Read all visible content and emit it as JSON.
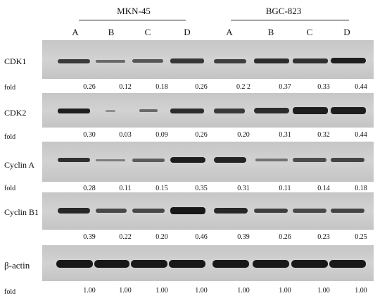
{
  "groups": [
    {
      "name": "MKN-45",
      "lanes": [
        "A",
        "B",
        "C",
        "D"
      ]
    },
    {
      "name": "BGC-823",
      "lanes": [
        "A",
        "B",
        "C",
        "D"
      ]
    }
  ],
  "fold_label": "fold",
  "blots": [
    {
      "protein": "CDK1",
      "folds": [
        "0.26",
        "0.12",
        "0.18",
        "0.26",
        "0.2 2",
        "0.37",
        "0.33",
        "0.44"
      ]
    },
    {
      "protein": "CDK2",
      "folds": [
        "0.30",
        "0.03",
        "0.09",
        "0.26",
        "0.20",
        "0.31",
        "0.32",
        "0.44"
      ]
    },
    {
      "protein": "Cyclin A",
      "folds": [
        "0.28",
        "0.11",
        "0.15",
        "0.35",
        "0.31",
        "0.11",
        "0.14",
        "0.18"
      ]
    },
    {
      "protein": "Cyclin B1",
      "folds": [
        "0.39",
        "0.22",
        "0.20",
        "0.46",
        "0.39",
        "0.26",
        "0.23",
        "0.25"
      ]
    },
    {
      "protein": "β-actin",
      "folds": [
        "1.00",
        "1.00",
        "1.00",
        "1.00",
        "1.00",
        "1.00",
        "1.00",
        "1.00"
      ]
    }
  ]
}
